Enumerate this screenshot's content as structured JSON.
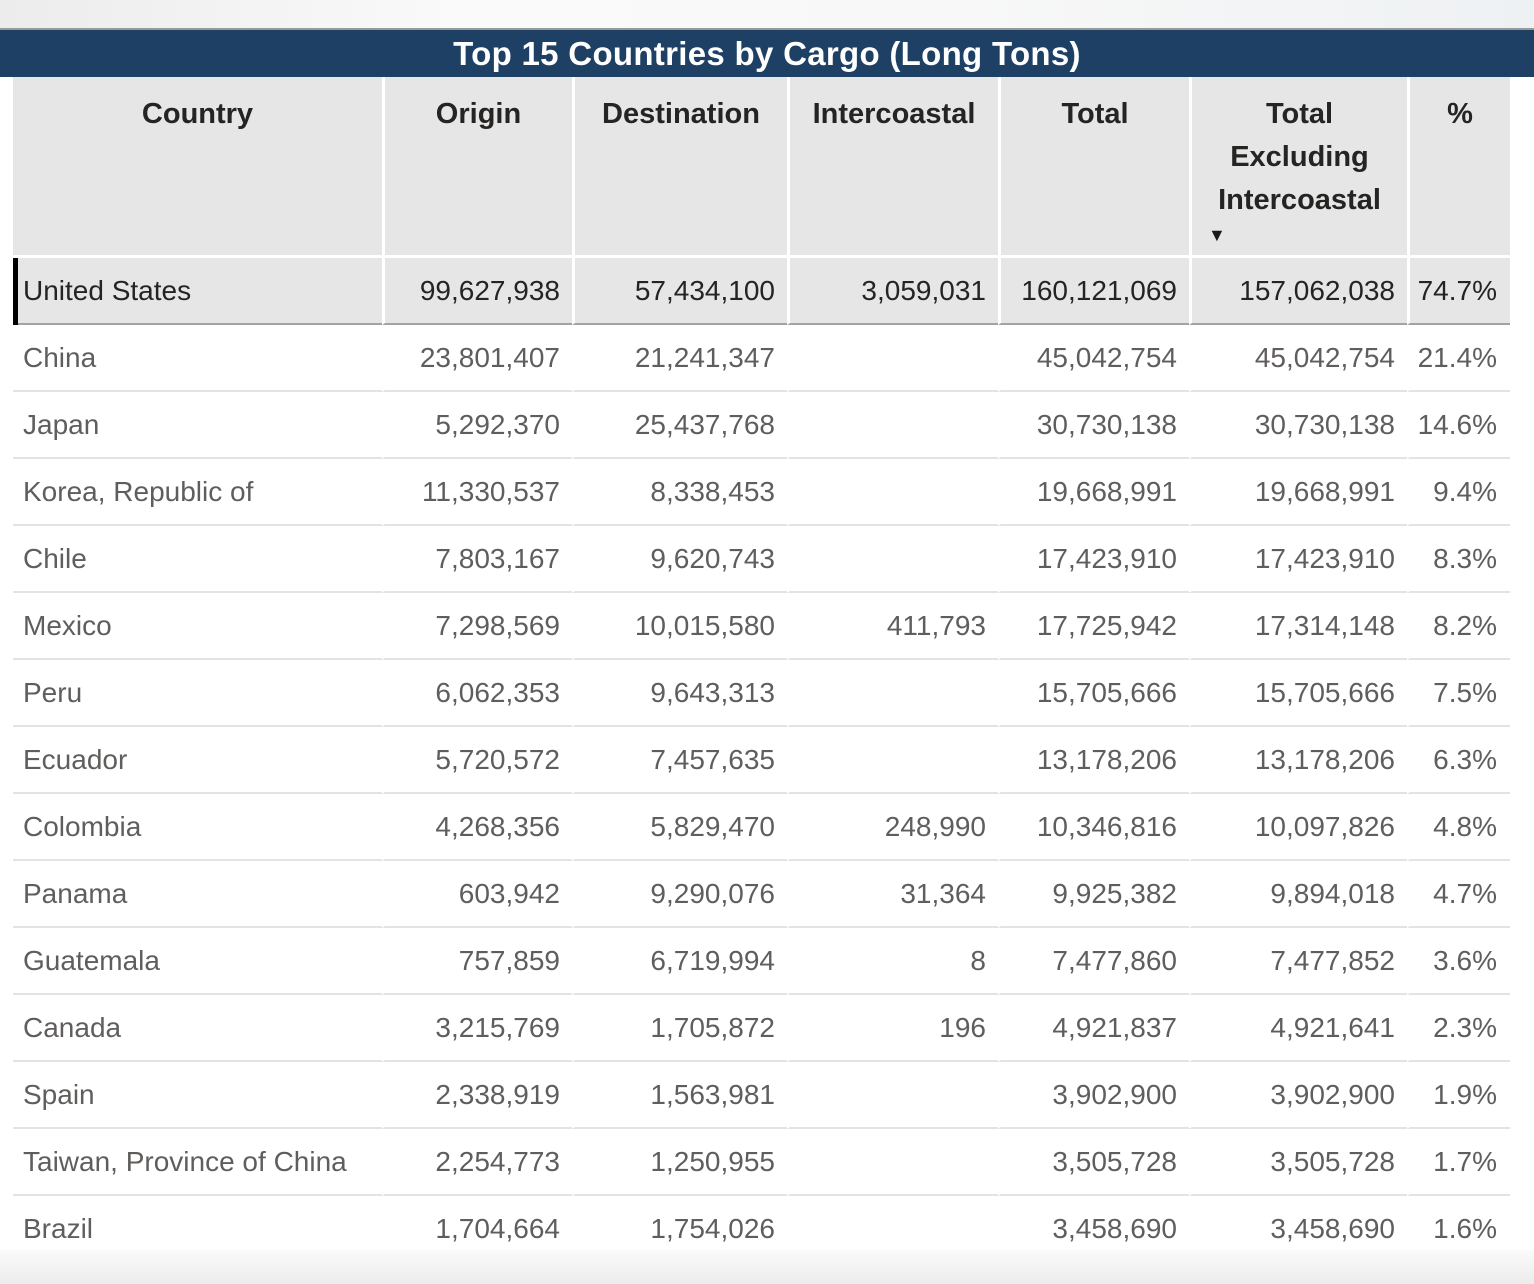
{
  "title_bar": {
    "title": "Top 15 Countries by Cargo (Long Tons)"
  },
  "colors": {
    "title_bar_background": "#1e4064",
    "title_text": "#ffffff",
    "header_background": "#e6e6e6",
    "selected_row_background": "#e6e6e6",
    "header_text": "#252423",
    "body_text": "#605e5c",
    "row_separator": "#e3e3e3",
    "selection_bar": "#000000"
  },
  "table": {
    "columns": [
      {
        "label": "Country",
        "sort": null
      },
      {
        "label": "Origin",
        "sort": null
      },
      {
        "label": "Destination",
        "sort": null
      },
      {
        "label": "Intercoastal",
        "sort": null
      },
      {
        "label": "Total",
        "sort": null
      },
      {
        "label": "Total Excluding Intercoastal",
        "sort": "descending"
      },
      {
        "label": "%",
        "sort": null
      }
    ],
    "sort_icon": "▼",
    "rows": [
      {
        "selected": true,
        "cells": [
          "United States",
          "99,627,938",
          "57,434,100",
          "3,059,031",
          "160,121,069",
          "157,062,038",
          "74.7%"
        ]
      },
      {
        "selected": false,
        "cells": [
          "China",
          "23,801,407",
          "21,241,347",
          "",
          "45,042,754",
          "45,042,754",
          "21.4%"
        ]
      },
      {
        "selected": false,
        "cells": [
          "Japan",
          "5,292,370",
          "25,437,768",
          "",
          "30,730,138",
          "30,730,138",
          "14.6%"
        ]
      },
      {
        "selected": false,
        "cells": [
          "Korea, Republic of",
          "11,330,537",
          "8,338,453",
          "",
          "19,668,991",
          "19,668,991",
          "9.4%"
        ]
      },
      {
        "selected": false,
        "cells": [
          "Chile",
          "7,803,167",
          "9,620,743",
          "",
          "17,423,910",
          "17,423,910",
          "8.3%"
        ]
      },
      {
        "selected": false,
        "cells": [
          "Mexico",
          "7,298,569",
          "10,015,580",
          "411,793",
          "17,725,942",
          "17,314,148",
          "8.2%"
        ]
      },
      {
        "selected": false,
        "cells": [
          "Peru",
          "6,062,353",
          "9,643,313",
          "",
          "15,705,666",
          "15,705,666",
          "7.5%"
        ]
      },
      {
        "selected": false,
        "cells": [
          "Ecuador",
          "5,720,572",
          "7,457,635",
          "",
          "13,178,206",
          "13,178,206",
          "6.3%"
        ]
      },
      {
        "selected": false,
        "cells": [
          "Colombia",
          "4,268,356",
          "5,829,470",
          "248,990",
          "10,346,816",
          "10,097,826",
          "4.8%"
        ]
      },
      {
        "selected": false,
        "cells": [
          "Panama",
          "603,942",
          "9,290,076",
          "31,364",
          "9,925,382",
          "9,894,018",
          "4.7%"
        ]
      },
      {
        "selected": false,
        "cells": [
          "Guatemala",
          "757,859",
          "6,719,994",
          "8",
          "7,477,860",
          "7,477,852",
          "3.6%"
        ]
      },
      {
        "selected": false,
        "cells": [
          "Canada",
          "3,215,769",
          "1,705,872",
          "196",
          "4,921,837",
          "4,921,641",
          "2.3%"
        ]
      },
      {
        "selected": false,
        "cells": [
          "Spain",
          "2,338,919",
          "1,563,981",
          "",
          "3,902,900",
          "3,902,900",
          "1.9%"
        ]
      },
      {
        "selected": false,
        "cells": [
          "Taiwan, Province of China",
          "2,254,773",
          "1,250,955",
          "",
          "3,505,728",
          "3,505,728",
          "1.7%"
        ]
      },
      {
        "selected": false,
        "cells": [
          "Brazil",
          "1,704,664",
          "1,754,026",
          "",
          "3,458,690",
          "3,458,690",
          "1.6%"
        ]
      }
    ]
  }
}
